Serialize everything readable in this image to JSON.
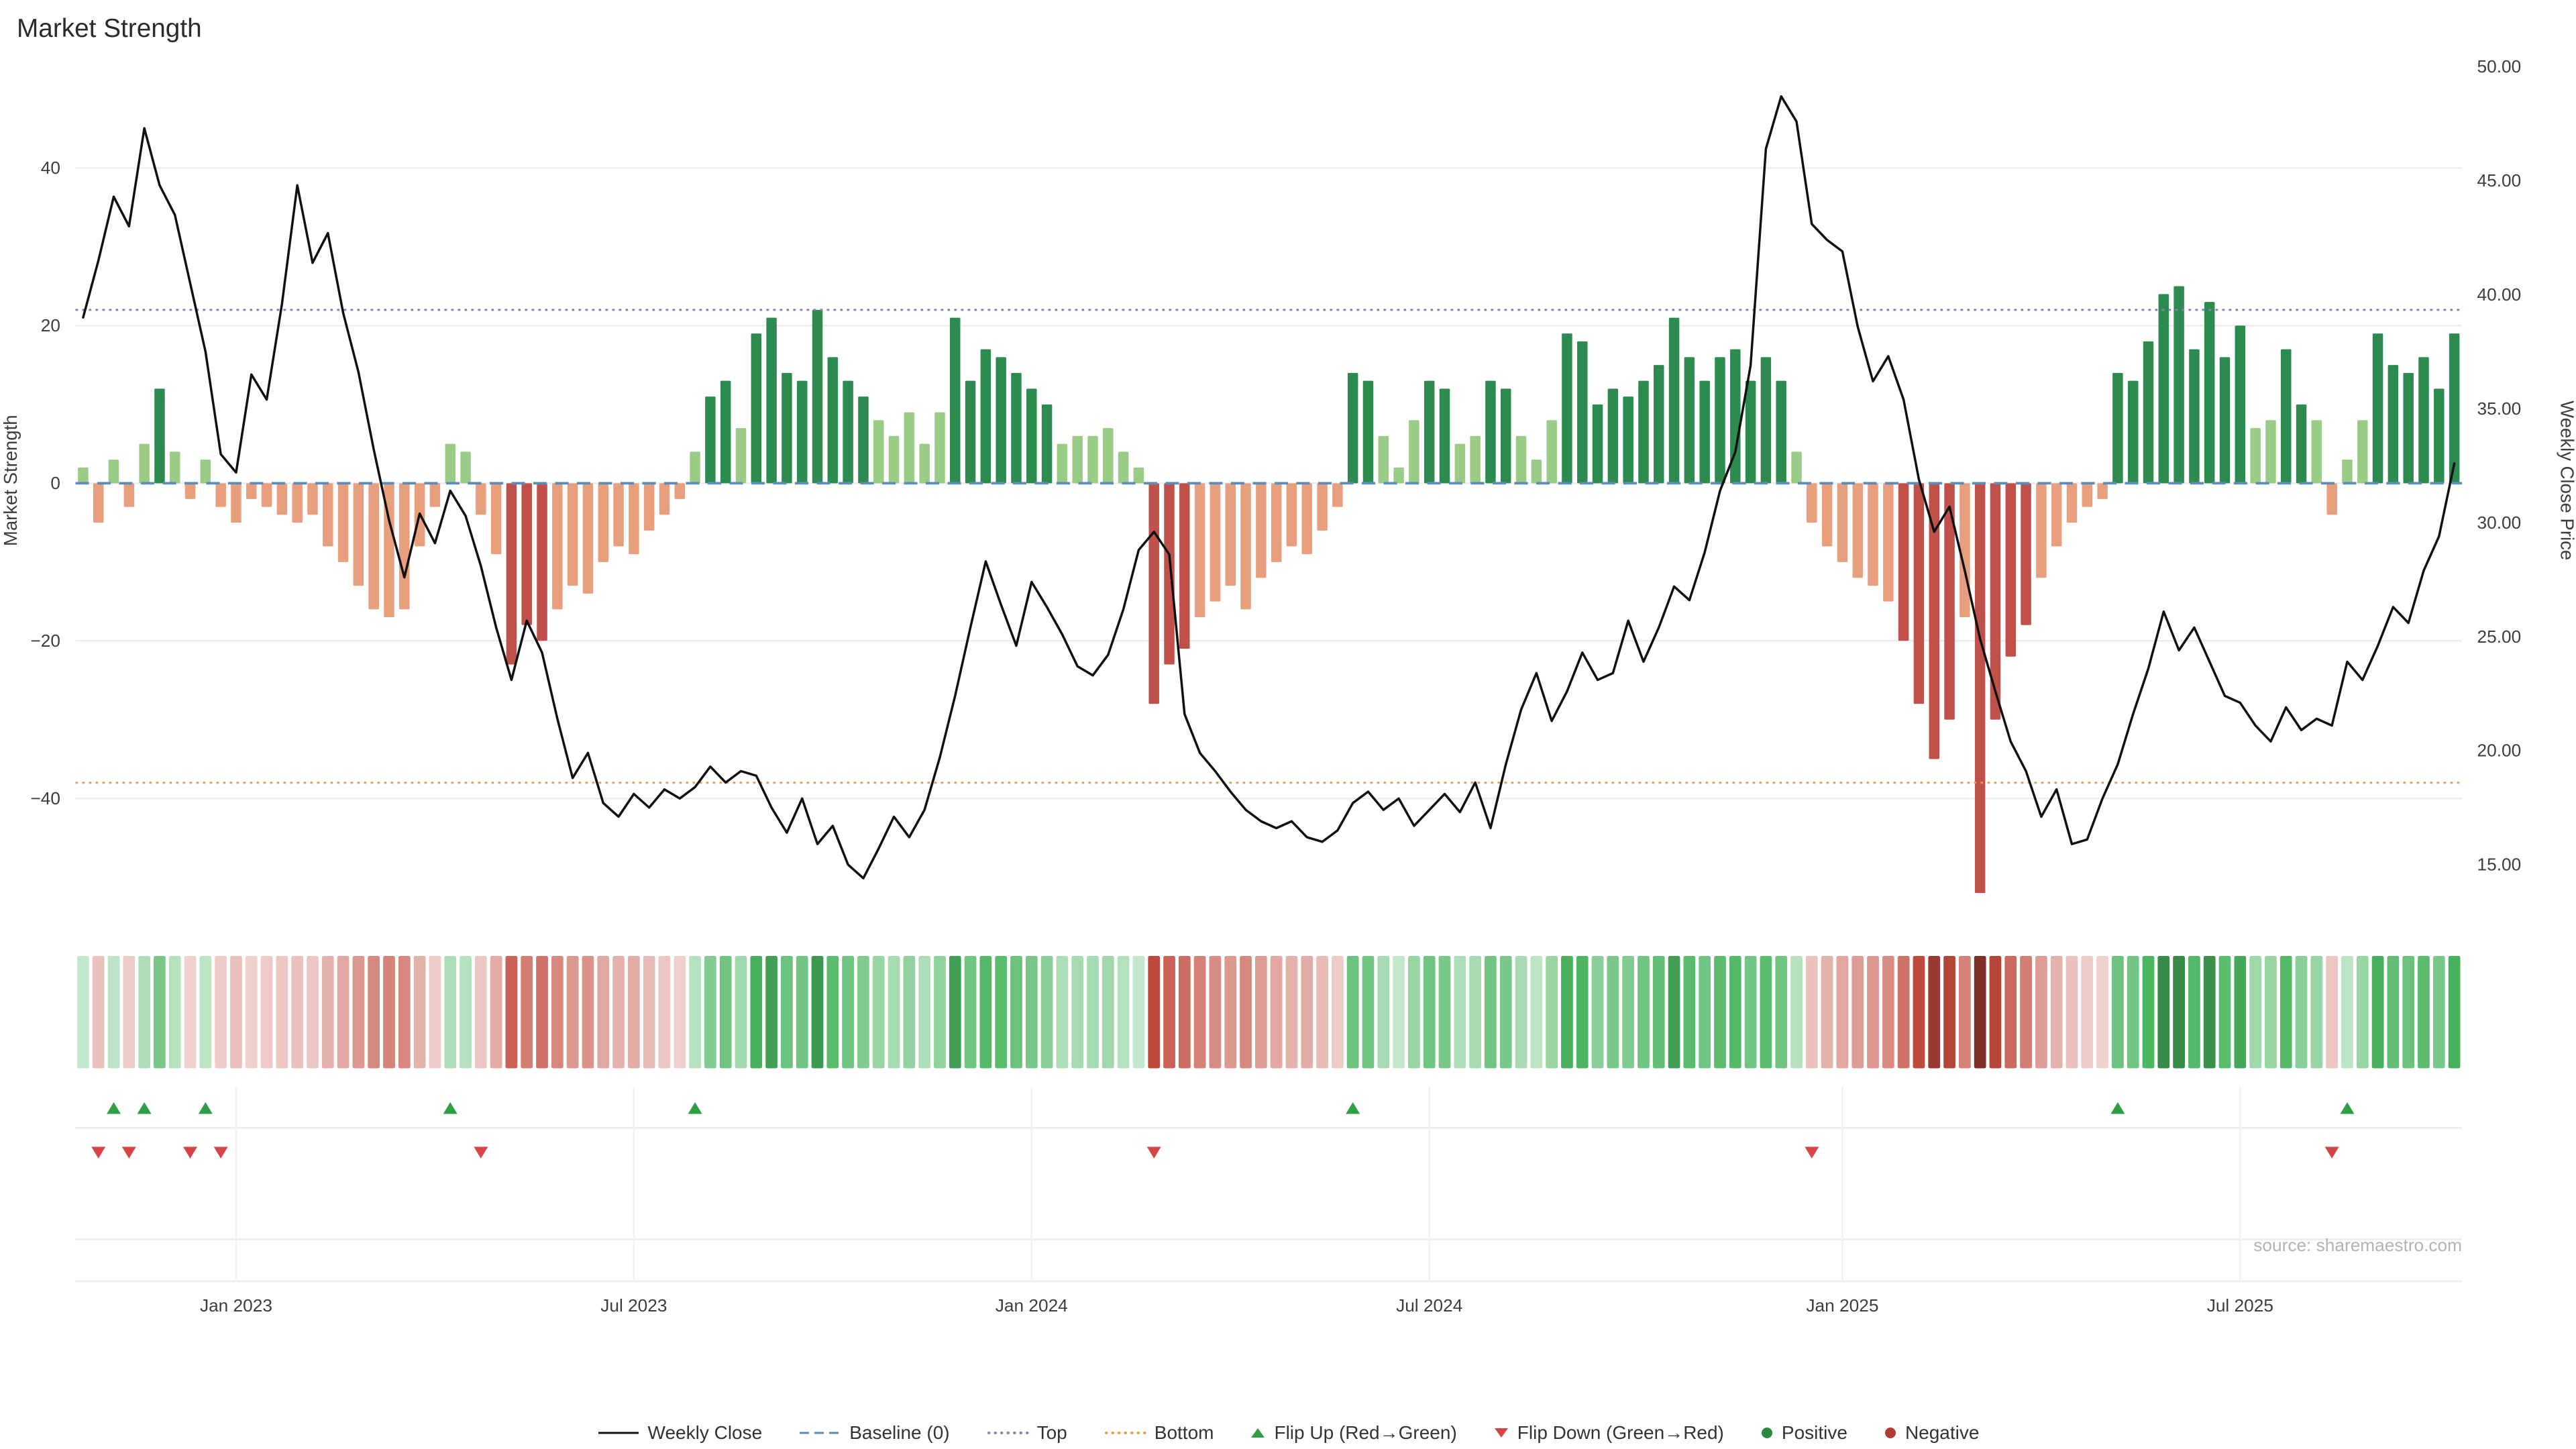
{
  "title": "Market Strength",
  "source_note": "source: sharemaestro.com",
  "chart_data": {
    "type": "bar+line combo with heatmap strip and flip markers",
    "points": 156,
    "x_unit": "week",
    "x_ticks": [
      {
        "week_index": 10,
        "label": "Jan 2023"
      },
      {
        "week_index": 36,
        "label": "Jul 2023"
      },
      {
        "week_index": 62,
        "label": "Jan 2024"
      },
      {
        "week_index": 88,
        "label": "Jul 2024"
      },
      {
        "week_index": 115,
        "label": "Jan 2025"
      },
      {
        "week_index": 141,
        "label": "Jul 2025"
      }
    ],
    "left_axis": {
      "title": "Market Strength",
      "ticks": [
        40,
        20,
        0,
        -20,
        -40
      ],
      "range": [
        -53.6,
        54.3
      ]
    },
    "right_axis": {
      "title": "Weekly Close Price",
      "ticks": [
        "50.00",
        "45.00",
        "40.00",
        "35.00",
        "30.00",
        "25.00",
        "20.00",
        "15.00"
      ],
      "tick_values": [
        50,
        45,
        40,
        35,
        30,
        25,
        20,
        15
      ],
      "range": [
        13.2,
        50.5
      ]
    },
    "reference_lines": {
      "baseline": 0,
      "top": 22,
      "bottom": -38
    },
    "series": [
      {
        "name": "Market Strength",
        "type": "bar",
        "axis": "left",
        "values": [
          2,
          -5,
          3,
          -3,
          5,
          12,
          4,
          -2,
          3,
          -3,
          -5,
          -2,
          -3,
          -4,
          -5,
          -4,
          -8,
          -10,
          -13,
          -16,
          -17,
          -16,
          -8,
          -3,
          5,
          4,
          -4,
          -9,
          -23,
          -18,
          -20,
          -16,
          -13,
          -14,
          -10,
          -8,
          -9,
          -6,
          -4,
          -2,
          4,
          11,
          13,
          7,
          19,
          21,
          14,
          13,
          22,
          16,
          13,
          11,
          8,
          6,
          9,
          5,
          9,
          21,
          13,
          17,
          16,
          14,
          12,
          10,
          5,
          6,
          6,
          7,
          4,
          2,
          -28,
          -23,
          -21,
          -17,
          -15,
          -13,
          -16,
          -12,
          -10,
          -8,
          -9,
          -6,
          -3,
          14,
          13,
          6,
          2,
          8,
          13,
          12,
          5,
          6,
          13,
          12,
          6,
          3,
          8,
          19,
          18,
          10,
          12,
          11,
          13,
          15,
          21,
          16,
          13,
          16,
          17,
          13,
          16,
          13,
          4,
          -5,
          -8,
          -10,
          -12,
          -13,
          -15,
          -20,
          -28,
          -35,
          -30,
          -17,
          -52,
          -30,
          -22,
          -18,
          -12,
          -8,
          -5,
          -3,
          -2,
          14,
          13,
          18,
          24,
          25,
          17,
          23,
          16,
          20,
          7,
          8,
          17,
          10,
          8,
          -4,
          3,
          8,
          19,
          15,
          14,
          16,
          12,
          19
        ]
      },
      {
        "name": "Weekly Close",
        "type": "line",
        "axis": "right",
        "values": [
          39.0,
          41.5,
          44.3,
          43.0,
          47.3,
          44.8,
          43.5,
          40.5,
          37.5,
          33.0,
          32.2,
          36.5,
          35.4,
          39.6,
          44.8,
          41.4,
          42.7,
          39.2,
          36.6,
          33.2,
          30.1,
          27.6,
          30.4,
          29.1,
          31.4,
          30.3,
          28.1,
          25.4,
          23.1,
          25.7,
          24.3,
          21.4,
          18.8,
          19.9,
          17.7,
          17.1,
          18.1,
          17.5,
          18.3,
          17.9,
          18.4,
          19.3,
          18.6,
          19.1,
          18.9,
          17.5,
          16.4,
          17.9,
          15.9,
          16.7,
          15.0,
          14.4,
          15.7,
          17.1,
          16.2,
          17.4,
          19.7,
          22.4,
          25.4,
          28.3,
          26.4,
          24.6,
          27.4,
          26.3,
          25.1,
          23.7,
          23.3,
          24.2,
          26.2,
          28.8,
          29.6,
          28.6,
          21.6,
          19.9,
          19.1,
          18.2,
          17.4,
          16.9,
          16.6,
          16.9,
          16.2,
          16.0,
          16.5,
          17.7,
          18.2,
          17.4,
          17.9,
          16.7,
          17.4,
          18.1,
          17.3,
          18.6,
          16.6,
          19.4,
          21.8,
          23.4,
          21.3,
          22.6,
          24.3,
          23.1,
          23.4,
          25.7,
          23.9,
          25.4,
          27.2,
          26.6,
          28.7,
          31.4,
          33.1,
          36.9,
          46.4,
          48.7,
          47.6,
          43.1,
          42.4,
          41.9,
          38.6,
          36.2,
          37.3,
          35.4,
          31.9,
          29.6,
          30.7,
          27.9,
          24.9,
          22.6,
          20.4,
          19.1,
          17.1,
          18.3,
          15.9,
          16.1,
          17.9,
          19.4,
          21.6,
          23.6,
          26.1,
          24.4,
          25.4,
          23.9,
          22.4,
          22.1,
          21.1,
          20.4,
          21.9,
          20.9,
          21.4,
          21.1,
          23.9,
          23.1,
          24.6,
          26.3,
          25.6,
          27.9,
          29.4,
          32.6
        ]
      }
    ],
    "flip_up_weeks": [
      2,
      4,
      8,
      24,
      40,
      83,
      133,
      148
    ],
    "flip_down_weeks": [
      1,
      3,
      7,
      9,
      26,
      70,
      113,
      147
    ],
    "heatmap": "one cell per week, red-to-green shade proportional to Market Strength value"
  },
  "legend": {
    "items": [
      {
        "label": "Weekly Close",
        "symbol": "line",
        "color": "#111111"
      },
      {
        "label": "Baseline (0)",
        "symbol": "dashed-line",
        "color": "#5b8db8"
      },
      {
        "label": "Top",
        "symbol": "dotted-line",
        "color": "#8f7bc0"
      },
      {
        "label": "Bottom",
        "symbol": "dotted-line",
        "color": "#e3a04f"
      },
      {
        "label": "Flip Up (Red→Green)",
        "symbol": "triangle-up",
        "color": "#2f9e44"
      },
      {
        "label": "Flip Down (Green→Red)",
        "symbol": "triangle-down",
        "color": "#d64545"
      },
      {
        "label": "Positive",
        "symbol": "circle",
        "color": "#2b8a3e"
      },
      {
        "label": "Negative",
        "symbol": "circle",
        "color": "#b03a35"
      }
    ]
  },
  "colors": {
    "bar_positive_strong": "#2e8b4f",
    "bar_positive_weak": "#9bcc86",
    "bar_negative_strong": "#c0504a",
    "bar_negative_weak": "#e89f7e",
    "line": "#111111",
    "baseline": "#5b8db8",
    "top_line": "#8f7bc0",
    "bottom_line": "#e3a04f",
    "flip_up": "#2f9e44",
    "flip_down": "#d64545",
    "grid": "#ededed",
    "separator": "#ececec",
    "axis_text": "#3d3d3d",
    "source_text": "#b3b3b3"
  }
}
